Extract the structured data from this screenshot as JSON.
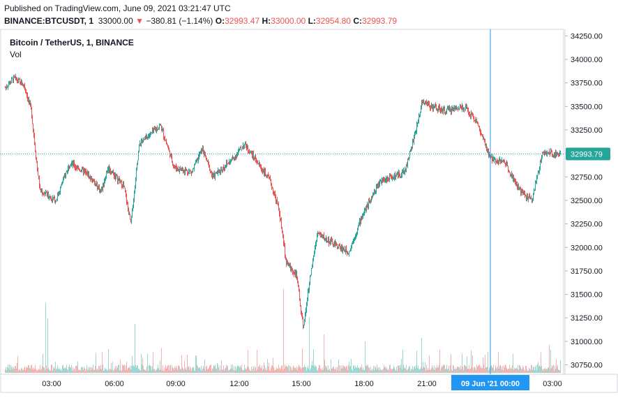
{
  "header": {
    "published": "Published on TradingView.com, June 09, 2021 03:21:47 UTC",
    "symbol": "BINANCE:BTCUSDT, 1",
    "last": "33000.00",
    "change_arrow": "▼",
    "change": "−380.81 (−1.14%)",
    "o_label": "O:",
    "o_value": "32993.47",
    "h_label": "H:",
    "h_value": "33000.00",
    "l_label": "L:",
    "l_value": "32954.80",
    "c_label": "C:",
    "c_value": "32993.79"
  },
  "legend": {
    "title": "Bitcoin / TetherUS, 1, BINANCE",
    "volume": "Vol"
  },
  "colors": {
    "up": "#26a69a",
    "down": "#ef5350",
    "last_price_bg": "#26a69a",
    "crosshair": "#2196f3",
    "grid": "#f0f3fa",
    "axis_text": "#131722"
  },
  "chart_data": {
    "type": "candlestick",
    "ylim": [
      30650,
      34320
    ],
    "y_ticks": [
      "34250.00",
      "34000.00",
      "33750.00",
      "33500.00",
      "33250.00",
      "33000.00",
      "32750.00",
      "32500.00",
      "32250.00",
      "32000.00",
      "31750.00",
      "31500.00",
      "31250.00",
      "31000.00",
      "30750.00"
    ],
    "x_ticks": [
      "03:00",
      "06:00",
      "09:00",
      "12:00",
      "15:00",
      "18:00",
      "21:00",
      "03:00"
    ],
    "crosshair_label": "09 Jun '21      00:00",
    "last_price_label": "32993.79",
    "price_path": [
      {
        "t": "01:05",
        "p": 33700
      },
      {
        "t": "01:30",
        "p": 33800
      },
      {
        "t": "02:00",
        "p": 33720
      },
      {
        "t": "02:20",
        "p": 33450
      },
      {
        "t": "02:35",
        "p": 32900
      },
      {
        "t": "02:45",
        "p": 32600
      },
      {
        "t": "03:30",
        "p": 32500
      },
      {
        "t": "04:10",
        "p": 32900
      },
      {
        "t": "05:00",
        "p": 32780
      },
      {
        "t": "05:40",
        "p": 32600
      },
      {
        "t": "06:00",
        "p": 32850
      },
      {
        "t": "06:45",
        "p": 32650
      },
      {
        "t": "07:05",
        "p": 32250
      },
      {
        "t": "07:30",
        "p": 33100
      },
      {
        "t": "08:30",
        "p": 33300
      },
      {
        "t": "09:10",
        "p": 32850
      },
      {
        "t": "10:00",
        "p": 32800
      },
      {
        "t": "10:30",
        "p": 33050
      },
      {
        "t": "11:00",
        "p": 32750
      },
      {
        "t": "12:00",
        "p": 32950
      },
      {
        "t": "12:30",
        "p": 33100
      },
      {
        "t": "13:00",
        "p": 32950
      },
      {
        "t": "13:45",
        "p": 32700
      },
      {
        "t": "14:10",
        "p": 32400
      },
      {
        "t": "14:30",
        "p": 31850
      },
      {
        "t": "15:00",
        "p": 31700
      },
      {
        "t": "15:20",
        "p": 31150
      },
      {
        "t": "15:40",
        "p": 31700
      },
      {
        "t": "16:00",
        "p": 32150
      },
      {
        "t": "16:40",
        "p": 32050
      },
      {
        "t": "17:30",
        "p": 31950
      },
      {
        "t": "18:10",
        "p": 32350
      },
      {
        "t": "19:00",
        "p": 32700
      },
      {
        "t": "20:10",
        "p": 32800
      },
      {
        "t": "20:40",
        "p": 33200
      },
      {
        "t": "21:00",
        "p": 33550
      },
      {
        "t": "22:00",
        "p": 33450
      },
      {
        "t": "23:00",
        "p": 33500
      },
      {
        "t": "23:35",
        "p": 33350
      },
      {
        "t": "00:15",
        "p": 32950
      },
      {
        "t": "01:00",
        "p": 32900
      },
      {
        "t": "01:40",
        "p": 32600
      },
      {
        "t": "02:15",
        "p": 32500
      },
      {
        "t": "02:45",
        "p": 33000
      }
    ]
  }
}
